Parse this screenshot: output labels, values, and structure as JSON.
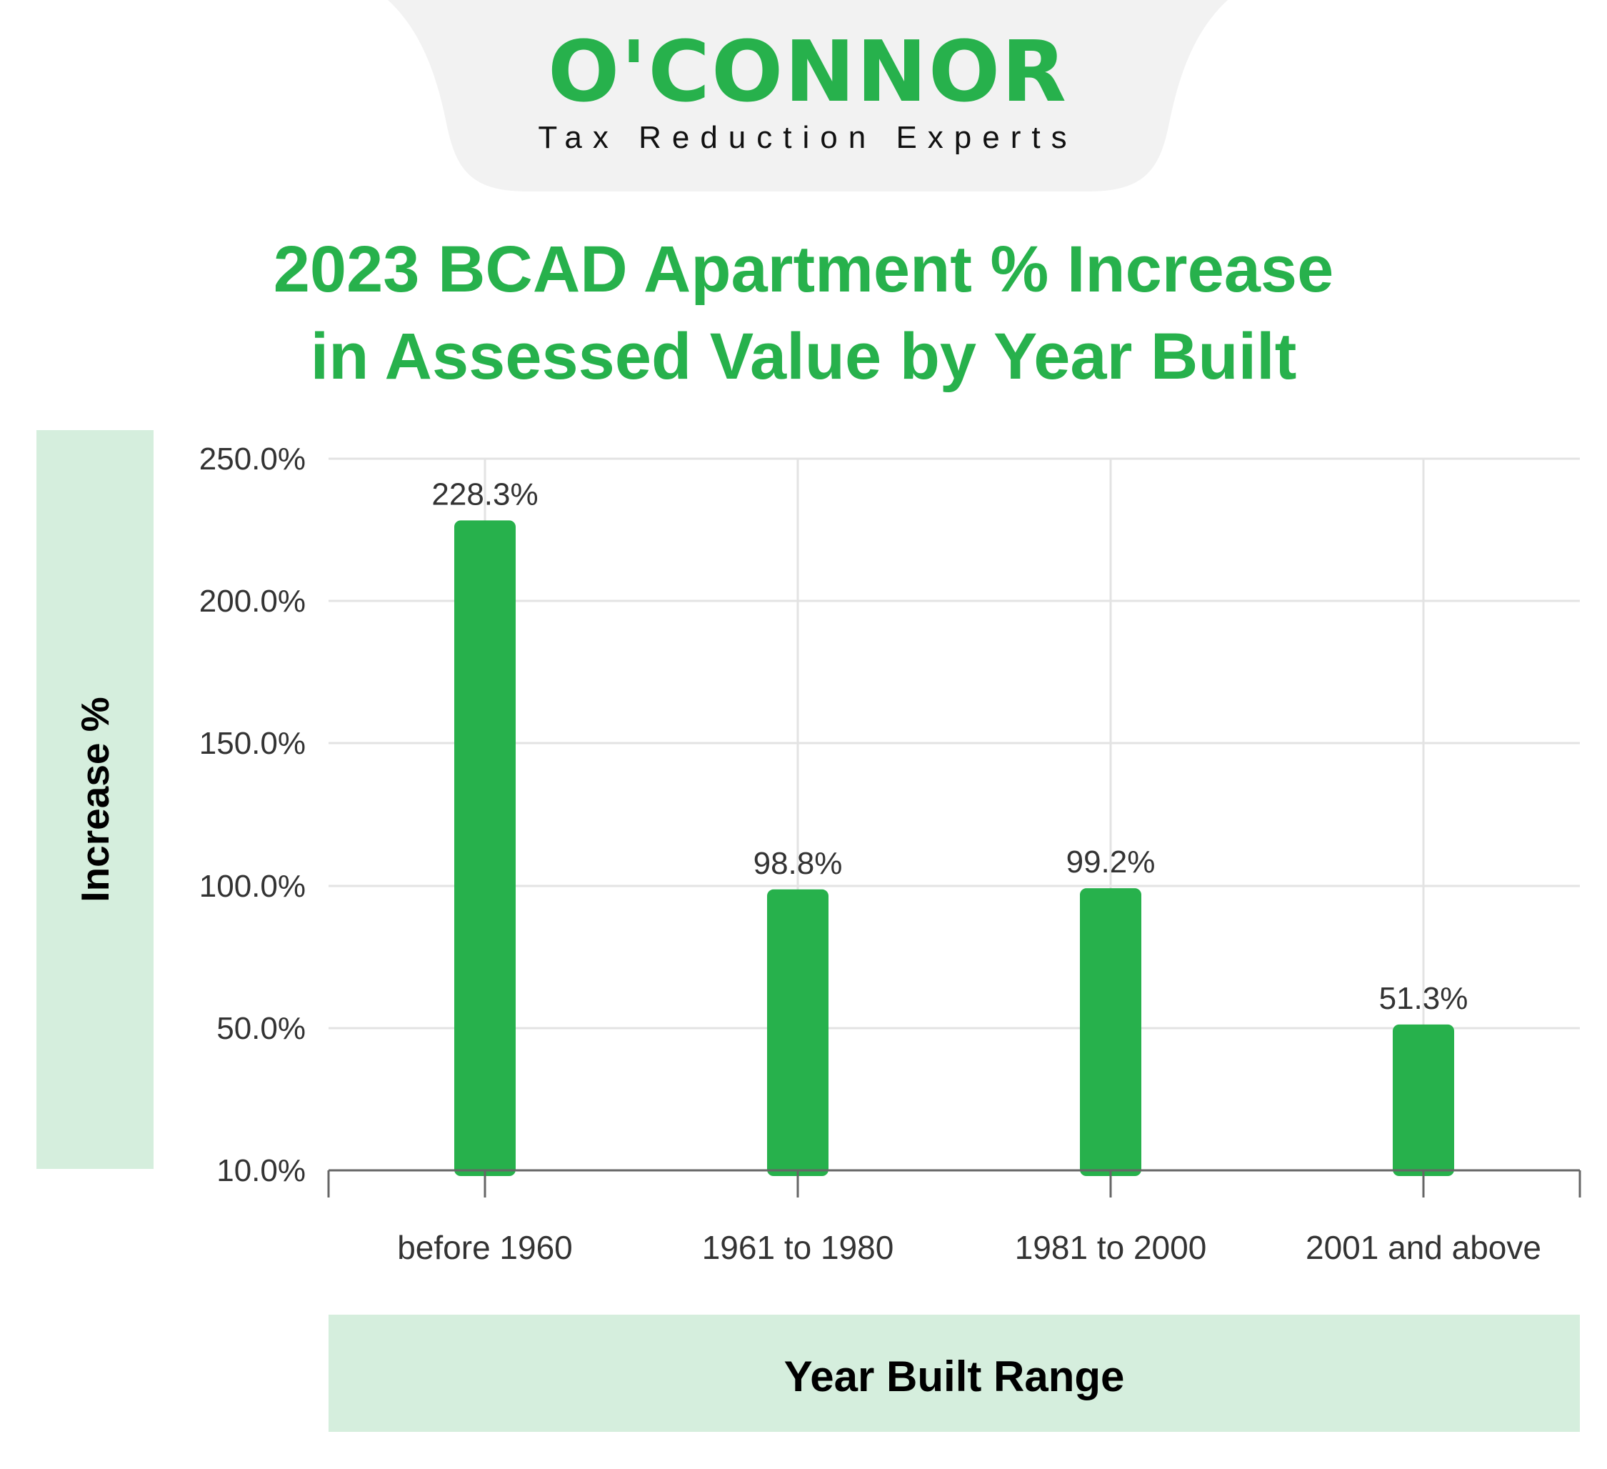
{
  "brand": {
    "logo_text": "O'CONNOR",
    "tagline": "Tax Reduction Experts"
  },
  "title_line1": "2023 BCAD Apartment % Increase",
  "title_line2": "in Assessed Value by Year Built",
  "colors": {
    "accent": "#27b14c",
    "panel": "#d5eedd",
    "grid": "#e3e3e3",
    "header_tab": "#f2f2f2",
    "tick_text": "#333333"
  },
  "chart_data": {
    "type": "bar",
    "categories": [
      "before 1960",
      "1961 to 1980",
      "1981 to 2000",
      "2001 and above"
    ],
    "values": [
      228.3,
      98.8,
      99.2,
      51.3
    ],
    "value_labels": [
      "228.3%",
      "98.8%",
      "99.2%",
      "51.3%"
    ],
    "y_ticks": [
      10,
      50,
      100,
      150,
      200,
      250
    ],
    "y_tick_labels": [
      "10.0%",
      "50.0%",
      "100.0%",
      "150.0%",
      "200.0%",
      "250.0%"
    ],
    "ylim": [
      10,
      250
    ],
    "xlabel": "Year Built Range",
    "ylabel": "Increase %",
    "grid": true,
    "legend": "none"
  }
}
